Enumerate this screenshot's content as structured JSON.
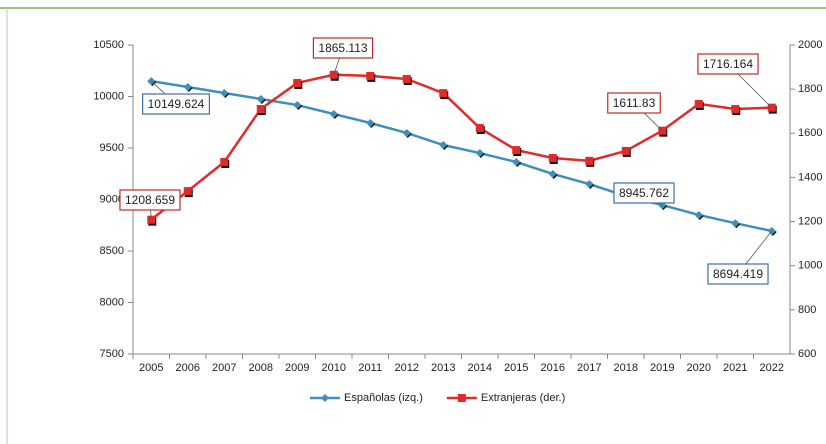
{
  "chart_data": {
    "type": "line",
    "categories": [
      "2005",
      "2006",
      "2007",
      "2008",
      "2009",
      "2010",
      "2011",
      "2012",
      "2013",
      "2014",
      "2015",
      "2016",
      "2017",
      "2018",
      "2019",
      "2020",
      "2021",
      "2022"
    ],
    "series": [
      {
        "name": "Españolas (izq.)",
        "color": "#3e8fbd",
        "axis": "y",
        "values": [
          10149.624,
          10092,
          10034,
          9976,
          9917,
          9830,
          9743,
          9646,
          9529,
          9451,
          9364,
          9248,
          9150,
          9034,
          8945.762,
          8850,
          8770,
          8694.419
        ]
      },
      {
        "name": "Extranjeras (der.)",
        "color": "#e02b2b",
        "axis": "y2",
        "values": [
          1208.659,
          1338,
          1470,
          1710,
          1828,
          1865.113,
          1860,
          1846,
          1782,
          1624,
          1524,
          1488,
          1475,
          1520,
          1611.83,
          1733,
          1710,
          1716.164
        ]
      }
    ],
    "ylim": [
      7500,
      10500
    ],
    "yticks": [
      7500,
      8000,
      8500,
      9000,
      9500,
      10000,
      10500
    ],
    "y2lim": [
      600,
      2000
    ],
    "y2ticks": [
      600,
      800,
      1000,
      1200,
      1400,
      1600,
      1800,
      2000
    ]
  }
}
